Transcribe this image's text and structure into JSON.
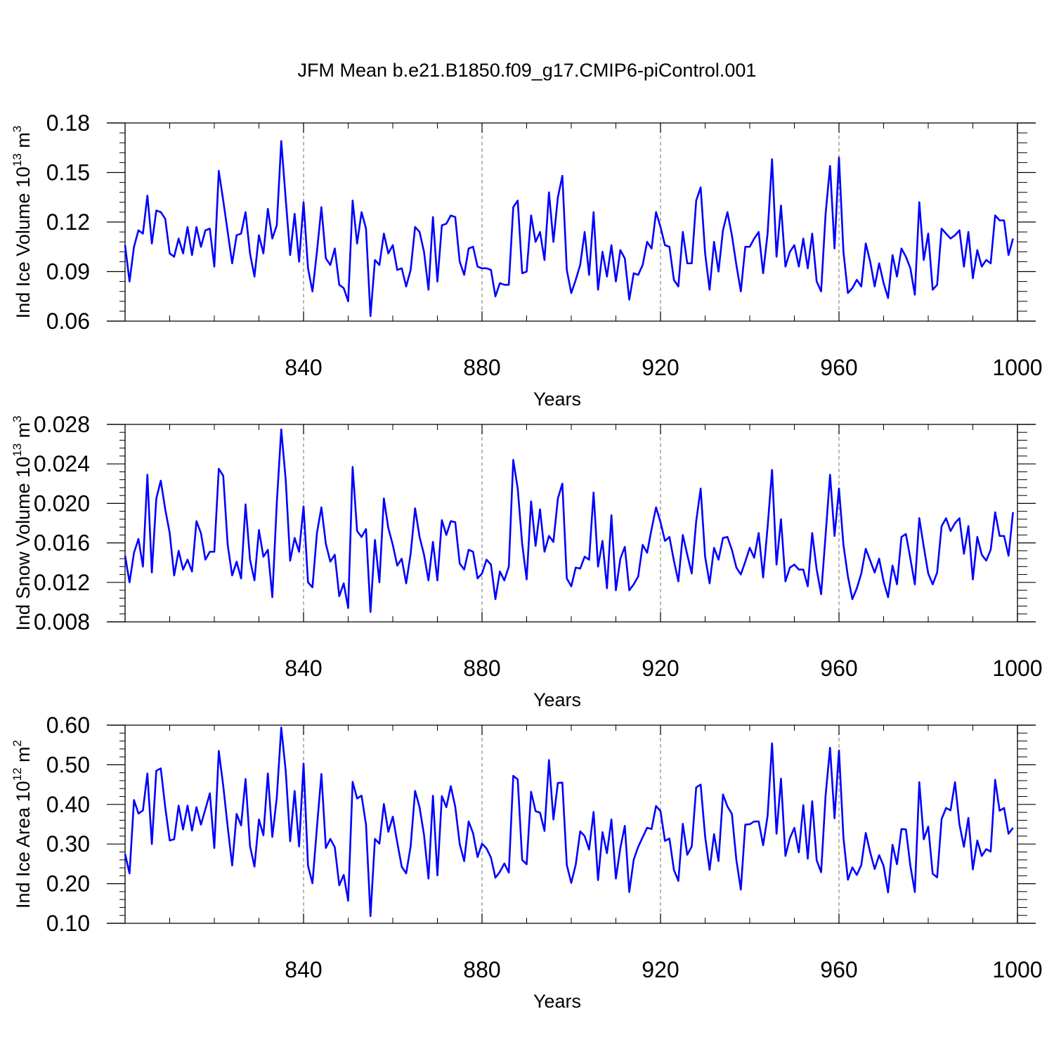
{
  "figure": {
    "title": "JFM Mean b.e21.B1850.f09_g17.CMIP6-piControl.001",
    "line_color": "#0000ff"
  },
  "chart_data": [
    {
      "type": "line",
      "title": "",
      "xlabel": "Years",
      "ylabel": {
        "text": "Ind Ice Volume 10",
        "exp": "13",
        "unit": " m",
        "unit_exp": "3"
      },
      "xlim": [
        800,
        1000
      ],
      "ylim": [
        0.06,
        0.18
      ],
      "xticks": [
        840,
        880,
        920,
        960,
        1000
      ],
      "xtick_labels": [
        "840",
        "880",
        "920",
        "960",
        "1000"
      ],
      "yticks": [
        0.06,
        0.09,
        0.12,
        0.15,
        0.18
      ],
      "ytick_labels": [
        "0.06",
        "0.09",
        "0.12",
        "0.15",
        "0.18"
      ],
      "grid": "x-dashed",
      "x_start": 800,
      "x_step": 1,
      "series": [
        {
          "values": [
            0.106,
            0.084,
            0.105,
            0.115,
            0.113,
            0.136,
            0.107,
            0.127,
            0.126,
            0.122,
            0.101,
            0.099,
            0.11,
            0.101,
            0.117,
            0.1,
            0.117,
            0.105,
            0.115,
            0.116,
            0.093,
            0.151,
            0.133,
            0.114,
            0.095,
            0.112,
            0.113,
            0.126,
            0.101,
            0.087,
            0.112,
            0.101,
            0.128,
            0.11,
            0.118,
            0.169,
            0.134,
            0.1,
            0.125,
            0.096,
            0.132,
            0.092,
            0.078,
            0.102,
            0.129,
            0.098,
            0.094,
            0.104,
            0.082,
            0.08,
            0.072,
            0.133,
            0.107,
            0.126,
            0.116,
            0.063,
            0.097,
            0.094,
            0.113,
            0.101,
            0.106,
            0.091,
            0.092,
            0.081,
            0.091,
            0.117,
            0.114,
            0.102,
            0.079,
            0.123,
            0.084,
            0.118,
            0.119,
            0.124,
            0.123,
            0.096,
            0.088,
            0.104,
            0.105,
            0.093,
            0.092,
            0.092,
            0.091,
            0.075,
            0.083,
            0.082,
            0.082,
            0.129,
            0.133,
            0.089,
            0.09,
            0.124,
            0.108,
            0.114,
            0.097,
            0.138,
            0.108,
            0.135,
            0.148,
            0.091,
            0.077,
            0.085,
            0.094,
            0.114,
            0.088,
            0.126,
            0.079,
            0.102,
            0.087,
            0.106,
            0.084,
            0.103,
            0.098,
            0.073,
            0.089,
            0.088,
            0.094,
            0.108,
            0.104,
            0.126,
            0.117,
            0.106,
            0.105,
            0.085,
            0.081,
            0.114,
            0.095,
            0.095,
            0.133,
            0.141,
            0.101,
            0.079,
            0.108,
            0.09,
            0.115,
            0.126,
            0.112,
            0.094,
            0.078,
            0.105,
            0.105,
            0.11,
            0.114,
            0.089,
            0.113,
            0.158,
            0.099,
            0.13,
            0.093,
            0.102,
            0.106,
            0.093,
            0.11,
            0.092,
            0.113,
            0.084,
            0.078,
            0.125,
            0.154,
            0.104,
            0.159,
            0.102,
            0.077,
            0.08,
            0.085,
            0.081,
            0.107,
            0.096,
            0.081,
            0.095,
            0.083,
            0.074,
            0.1,
            0.087,
            0.104,
            0.099,
            0.092,
            0.076,
            0.132,
            0.097,
            0.113,
            0.079,
            0.082,
            0.116,
            0.113,
            0.11,
            0.112,
            0.115,
            0.093,
            0.114,
            0.086,
            0.103,
            0.093,
            0.097,
            0.095,
            0.124,
            0.121,
            0.121,
            0.1,
            0.11
          ]
        }
      ]
    },
    {
      "type": "line",
      "title": "",
      "xlabel": "Years",
      "ylabel": {
        "text": "Ind Snow Volume 10",
        "exp": "13",
        "unit": " m",
        "unit_exp": "3"
      },
      "xlim": [
        800,
        1000
      ],
      "ylim": [
        0.008,
        0.028
      ],
      "xticks": [
        840,
        880,
        920,
        960,
        1000
      ],
      "xtick_labels": [
        "840",
        "880",
        "920",
        "960",
        "1000"
      ],
      "yticks": [
        0.008,
        0.012,
        0.016,
        0.02,
        0.024,
        0.028
      ],
      "ytick_labels": [
        "0.008",
        "0.012",
        "0.016",
        "0.020",
        "0.024",
        "0.028"
      ],
      "grid": "x-dashed",
      "x_start": 800,
      "x_step": 1,
      "series": [
        {
          "values": [
            0.0147,
            0.012,
            0.015,
            0.0164,
            0.0136,
            0.0229,
            0.013,
            0.0205,
            0.0223,
            0.0194,
            0.017,
            0.0127,
            0.0152,
            0.0133,
            0.0143,
            0.0131,
            0.0182,
            0.017,
            0.0143,
            0.0151,
            0.0151,
            0.0235,
            0.0228,
            0.0158,
            0.0127,
            0.0141,
            0.0124,
            0.0199,
            0.0143,
            0.0122,
            0.0173,
            0.0146,
            0.0153,
            0.0105,
            0.02,
            0.0275,
            0.0224,
            0.0142,
            0.0165,
            0.0151,
            0.0197,
            0.012,
            0.0115,
            0.017,
            0.0196,
            0.0159,
            0.0141,
            0.0148,
            0.0106,
            0.0119,
            0.0094,
            0.0237,
            0.0172,
            0.0166,
            0.0174,
            0.009,
            0.0163,
            0.012,
            0.0205,
            0.0175,
            0.0158,
            0.0137,
            0.0144,
            0.0119,
            0.0149,
            0.0195,
            0.0166,
            0.0148,
            0.0122,
            0.0161,
            0.0122,
            0.0183,
            0.0168,
            0.0182,
            0.0181,
            0.0139,
            0.0133,
            0.0153,
            0.0151,
            0.0124,
            0.0129,
            0.0143,
            0.0138,
            0.0103,
            0.0131,
            0.0122,
            0.0136,
            0.0244,
            0.0215,
            0.0159,
            0.0123,
            0.0202,
            0.0157,
            0.0194,
            0.0151,
            0.0167,
            0.0161,
            0.0205,
            0.022,
            0.0124,
            0.0116,
            0.0135,
            0.0134,
            0.0146,
            0.0143,
            0.0211,
            0.0136,
            0.0162,
            0.0114,
            0.0188,
            0.0112,
            0.0144,
            0.0156,
            0.0112,
            0.0118,
            0.0126,
            0.0158,
            0.015,
            0.0174,
            0.0196,
            0.0181,
            0.0162,
            0.0166,
            0.0142,
            0.0121,
            0.0168,
            0.0148,
            0.0129,
            0.0182,
            0.0215,
            0.0146,
            0.0119,
            0.0155,
            0.0143,
            0.0165,
            0.0166,
            0.0153,
            0.0135,
            0.0128,
            0.0141,
            0.0155,
            0.0145,
            0.017,
            0.0125,
            0.0176,
            0.0234,
            0.0138,
            0.0184,
            0.0121,
            0.0135,
            0.0138,
            0.0133,
            0.0133,
            0.0116,
            0.017,
            0.0133,
            0.0108,
            0.0168,
            0.0229,
            0.0167,
            0.0215,
            0.0158,
            0.0126,
            0.0103,
            0.0114,
            0.0129,
            0.0154,
            0.0142,
            0.013,
            0.0144,
            0.0121,
            0.0105,
            0.0137,
            0.0118,
            0.0166,
            0.0169,
            0.0144,
            0.0118,
            0.0185,
            0.0156,
            0.0129,
            0.0118,
            0.013,
            0.0177,
            0.0185,
            0.0172,
            0.018,
            0.0185,
            0.0149,
            0.0177,
            0.0123,
            0.0166,
            0.0148,
            0.0142,
            0.0153,
            0.0191,
            0.0167,
            0.0167,
            0.0147,
            0.0191
          ]
        }
      ]
    },
    {
      "type": "line",
      "title": "",
      "xlabel": "Years",
      "ylabel": {
        "text": "Ind Ice Area 10",
        "exp": "12",
        "unit": " m",
        "unit_exp": "2"
      },
      "xlim": [
        800,
        1000
      ],
      "ylim": [
        0.1,
        0.6
      ],
      "xticks": [
        840,
        880,
        920,
        960,
        1000
      ],
      "xtick_labels": [
        "840",
        "880",
        "920",
        "960",
        "1000"
      ],
      "yticks": [
        0.1,
        0.2,
        0.3,
        0.4,
        0.5,
        0.6
      ],
      "ytick_labels": [
        "0.10",
        "0.20",
        "0.30",
        "0.40",
        "0.50",
        "0.60"
      ],
      "grid": "x-dashed",
      "x_start": 800,
      "x_step": 1,
      "series": [
        {
          "values": [
            0.275,
            0.226,
            0.411,
            0.377,
            0.385,
            0.478,
            0.3,
            0.485,
            0.491,
            0.393,
            0.309,
            0.312,
            0.397,
            0.337,
            0.397,
            0.334,
            0.393,
            0.349,
            0.388,
            0.428,
            0.29,
            0.535,
            0.447,
            0.343,
            0.246,
            0.376,
            0.347,
            0.464,
            0.295,
            0.243,
            0.362,
            0.322,
            0.478,
            0.318,
            0.417,
            0.594,
            0.485,
            0.307,
            0.434,
            0.294,
            0.503,
            0.245,
            0.201,
            0.342,
            0.477,
            0.29,
            0.313,
            0.292,
            0.196,
            0.222,
            0.157,
            0.457,
            0.415,
            0.422,
            0.349,
            0.118,
            0.313,
            0.301,
            0.401,
            0.331,
            0.369,
            0.304,
            0.243,
            0.226,
            0.294,
            0.434,
            0.393,
            0.323,
            0.213,
            0.422,
            0.221,
            0.421,
            0.393,
            0.446,
            0.394,
            0.3,
            0.257,
            0.357,
            0.327,
            0.267,
            0.301,
            0.289,
            0.266,
            0.215,
            0.23,
            0.251,
            0.228,
            0.472,
            0.463,
            0.26,
            0.249,
            0.432,
            0.383,
            0.379,
            0.333,
            0.512,
            0.362,
            0.454,
            0.455,
            0.247,
            0.202,
            0.248,
            0.332,
            0.32,
            0.286,
            0.381,
            0.209,
            0.33,
            0.277,
            0.362,
            0.213,
            0.29,
            0.346,
            0.179,
            0.261,
            0.293,
            0.317,
            0.341,
            0.338,
            0.396,
            0.383,
            0.308,
            0.314,
            0.235,
            0.207,
            0.351,
            0.273,
            0.294,
            0.443,
            0.45,
            0.319,
            0.235,
            0.325,
            0.257,
            0.425,
            0.395,
            0.376,
            0.26,
            0.185,
            0.349,
            0.35,
            0.357,
            0.357,
            0.297,
            0.371,
            0.554,
            0.326,
            0.465,
            0.27,
            0.315,
            0.341,
            0.279,
            0.398,
            0.263,
            0.408,
            0.259,
            0.229,
            0.423,
            0.543,
            0.365,
            0.536,
            0.316,
            0.21,
            0.241,
            0.222,
            0.247,
            0.328,
            0.279,
            0.237,
            0.272,
            0.245,
            0.178,
            0.298,
            0.249,
            0.338,
            0.337,
            0.245,
            0.179,
            0.456,
            0.312,
            0.344,
            0.225,
            0.216,
            0.363,
            0.391,
            0.385,
            0.456,
            0.35,
            0.293,
            0.366,
            0.236,
            0.309,
            0.27,
            0.287,
            0.281,
            0.462,
            0.384,
            0.391,
            0.326,
            0.341
          ]
        }
      ]
    }
  ]
}
